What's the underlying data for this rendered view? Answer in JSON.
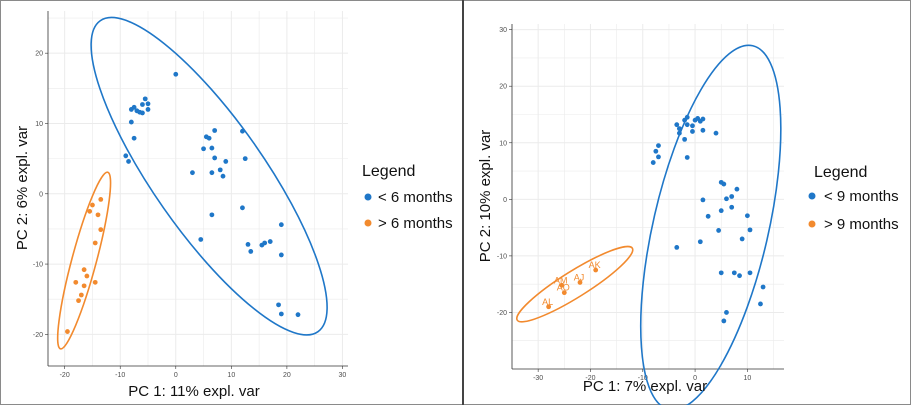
{
  "colors": {
    "blue": "#1f77c8",
    "orange": "#f28a2e",
    "panel": "#ffffff",
    "grid": "#ebebeb",
    "axis": "#333333"
  },
  "chart_data": [
    {
      "type": "scatter",
      "title": "",
      "xlabel": "PC 1: 11% expl. var",
      "ylabel": "PC 2: 6% expl. var",
      "xlim": [
        -23,
        31
      ],
      "ylim": [
        -24.5,
        26
      ],
      "xticks": [
        -20,
        -10,
        0,
        10,
        20,
        30
      ],
      "yticks": [
        -20,
        -10,
        0,
        10,
        20
      ],
      "grid": true,
      "legend": {
        "title": "Legend",
        "position": "right"
      },
      "series": [
        {
          "name": "< 6 months",
          "color": "blue",
          "points": [
            [
              -8,
              12
            ],
            [
              -7.5,
              12.3
            ],
            [
              -7,
              11.8
            ],
            [
              -6.5,
              11.6
            ],
            [
              -6,
              11.5
            ],
            [
              -6,
              12.7
            ],
            [
              -5.5,
              13.5
            ],
            [
              -5,
              12.8
            ],
            [
              -5,
              12.0
            ],
            [
              -8,
              10.2
            ],
            [
              -7.5,
              7.9
            ],
            [
              -9,
              5.4
            ],
            [
              -8.5,
              4.6
            ],
            [
              0,
              17
            ],
            [
              5.5,
              8.1
            ],
            [
              6,
              7.9
            ],
            [
              7,
              9.0
            ],
            [
              6.5,
              6.5
            ],
            [
              5,
              6.4
            ],
            [
              7,
              5.1
            ],
            [
              12,
              8.9
            ],
            [
              9,
              4.6
            ],
            [
              6.5,
              3.0
            ],
            [
              8,
              3.4
            ],
            [
              3,
              3.0
            ],
            [
              8.5,
              2.5
            ],
            [
              12.5,
              5.0
            ],
            [
              6.5,
              -3.0
            ],
            [
              4.5,
              -6.5
            ],
            [
              12,
              -2.0
            ],
            [
              13,
              -7.2
            ],
            [
              13.5,
              -8.2
            ],
            [
              16,
              -7.0
            ],
            [
              17,
              -6.8
            ],
            [
              19,
              -4.4
            ],
            [
              19,
              -8.7
            ],
            [
              18.5,
              -15.8
            ],
            [
              19,
              -17.1
            ],
            [
              22,
              -17.2
            ],
            [
              15.5,
              -7.3
            ]
          ]
        },
        {
          "name": "> 6 months",
          "color": "orange",
          "points": [
            [
              -13.5,
              -0.8
            ],
            [
              -14,
              -3.0
            ],
            [
              -15,
              -1.6
            ],
            [
              -15.5,
              -2.5
            ],
            [
              -14.5,
              -7.0
            ],
            [
              -13.5,
              -5.1
            ],
            [
              -16.5,
              -10.8
            ],
            [
              -16,
              -11.7
            ],
            [
              -18,
              -12.6
            ],
            [
              -16.5,
              -13.1
            ],
            [
              -14.5,
              -12.6
            ],
            [
              -17.5,
              -15.2
            ],
            [
              -17,
              -14.4
            ],
            [
              -19.5,
              -19.6
            ]
          ]
        }
      ],
      "ellipses": [
        {
          "series": "< 6 months",
          "center": [
            6,
            2.5
          ],
          "radii": [
            10,
            27
          ],
          "rotation_deg": -35
        },
        {
          "series": "> 6 months",
          "center": [
            -16.5,
            -9.5
          ],
          "radii": [
            2.2,
            13
          ],
          "rotation_deg": 15
        }
      ]
    },
    {
      "type": "scatter",
      "title": "",
      "xlabel": "PC 1: 7% expl. var",
      "ylabel": "PC 2: 10% expl. var",
      "xlim": [
        -35,
        17
      ],
      "ylim": [
        -30,
        31
      ],
      "xticks": [
        -30,
        -20,
        -10,
        0,
        10
      ],
      "yticks": [
        -20,
        -10,
        0,
        10,
        20,
        30
      ],
      "grid": true,
      "legend": {
        "title": "Legend",
        "position": "right"
      },
      "series": [
        {
          "name": "< 9 months",
          "color": "blue",
          "points": [
            [
              -3.5,
              13.2
            ],
            [
              -3,
              12.5
            ],
            [
              -2,
              14.0
            ],
            [
              -1.5,
              14.5
            ],
            [
              -1.5,
              13.2
            ],
            [
              -0.5,
              13.0
            ],
            [
              0,
              14.0
            ],
            [
              0.5,
              14.3
            ],
            [
              1,
              13.8
            ],
            [
              1.5,
              14.2
            ],
            [
              -3,
              11.7
            ],
            [
              -0.5,
              12.0
            ],
            [
              1.5,
              12.2
            ],
            [
              -2,
              10.6
            ],
            [
              4,
              11.7
            ],
            [
              -7,
              9.5
            ],
            [
              -7.5,
              8.5
            ],
            [
              -7,
              7.5
            ],
            [
              -8,
              6.5
            ],
            [
              -1.5,
              7.4
            ],
            [
              5,
              3.0
            ],
            [
              5.5,
              2.7
            ],
            [
              8,
              1.8
            ],
            [
              7,
              0.5
            ],
            [
              6,
              0.1
            ],
            [
              7,
              -1.4
            ],
            [
              1.5,
              -0.1
            ],
            [
              2.5,
              -3.0
            ],
            [
              5,
              -2.0
            ],
            [
              10,
              -2.9
            ],
            [
              10.5,
              -5.4
            ],
            [
              9,
              -7.0
            ],
            [
              4.5,
              -5.5
            ],
            [
              1,
              -7.5
            ],
            [
              -3.5,
              -8.5
            ],
            [
              5,
              -13.0
            ],
            [
              7.5,
              -13.0
            ],
            [
              8.5,
              -13.5
            ],
            [
              10.5,
              -13.0
            ],
            [
              6,
              -20.0
            ],
            [
              5.5,
              -21.5
            ],
            [
              12.5,
              -18.5
            ],
            [
              13,
              -15.5
            ]
          ]
        },
        {
          "name": "> 9 months",
          "color": "orange",
          "points": [
            [
              -28,
              -19.0
            ],
            [
              -25.5,
              -15.2
            ],
            [
              -25,
              -16.5
            ],
            [
              -22,
              -14.7
            ],
            [
              -19,
              -12.5
            ]
          ],
          "labels": [
            "AL",
            "AM",
            "AO",
            "AJ",
            "AK"
          ]
        }
      ],
      "ellipses": [
        {
          "series": "< 9 months",
          "center": [
            3,
            -5
          ],
          "radii": [
            11,
            33
          ],
          "rotation_deg": 13
        },
        {
          "series": "> 9 months",
          "center": [
            -23,
            -15
          ],
          "radii": [
            2.5,
            12
          ],
          "rotation_deg": 58
        }
      ]
    }
  ]
}
